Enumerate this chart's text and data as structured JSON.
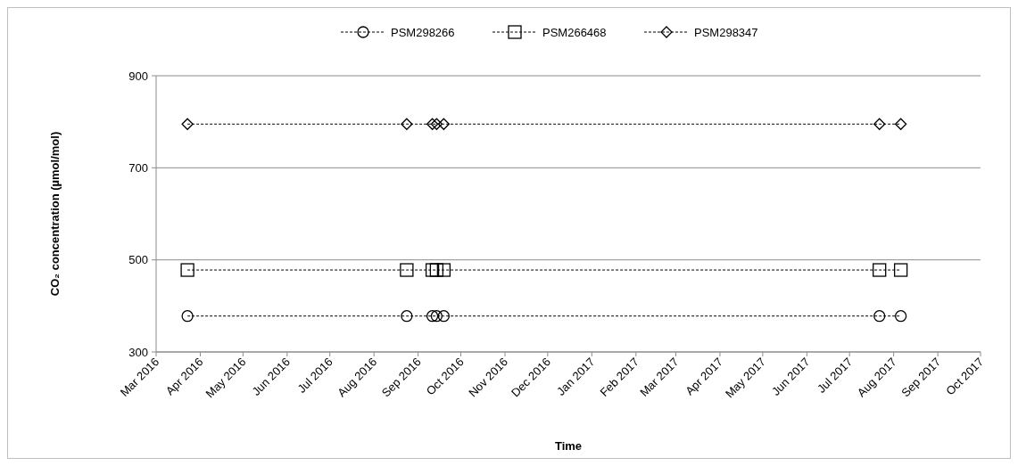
{
  "chart_data": {
    "type": "line",
    "xlabel": "Time",
    "ylabel": "CO₂ concentration (µmol/mol)",
    "x": [
      "2016-03-23",
      "2016-08-24",
      "2016-09-11",
      "2016-09-14",
      "2016-09-19",
      "2017-07-22",
      "2017-08-06"
    ],
    "series": [
      {
        "name": "PSM298266",
        "color": "#000000",
        "marker": "circle",
        "values": [
          378,
          378,
          378,
          378,
          378,
          378,
          378
        ]
      },
      {
        "name": "PSM266468",
        "color": "#000000",
        "marker": "square",
        "values": [
          478,
          478,
          478,
          478,
          478,
          478,
          478
        ]
      },
      {
        "name": "PSM298347",
        "color": "#000000",
        "marker": "diamond",
        "values": [
          795,
          795,
          795,
          795,
          795,
          795,
          795
        ]
      }
    ],
    "xlim": [
      "2016-03-01",
      "2017-10-01"
    ],
    "xticks": [
      {
        "value": "2016-03-01",
        "label": "Mar 2016"
      },
      {
        "value": "2016-04-01",
        "label": "Apr 2016"
      },
      {
        "value": "2016-05-01",
        "label": "May 2016"
      },
      {
        "value": "2016-06-01",
        "label": "Jun 2016"
      },
      {
        "value": "2016-07-01",
        "label": "Jul 2016"
      },
      {
        "value": "2016-08-01",
        "label": "Aug 2016"
      },
      {
        "value": "2016-09-01",
        "label": "Sep 2016"
      },
      {
        "value": "2016-10-01",
        "label": "Oct 2016"
      },
      {
        "value": "2016-11-01",
        "label": "Nov 2016"
      },
      {
        "value": "2016-12-01",
        "label": "Dec 2016"
      },
      {
        "value": "2017-01-01",
        "label": "Jan 2017"
      },
      {
        "value": "2017-02-01",
        "label": "Feb 2017"
      },
      {
        "value": "2017-03-01",
        "label": "Mar 2017"
      },
      {
        "value": "2017-04-01",
        "label": "Apr 2017"
      },
      {
        "value": "2017-05-01",
        "label": "May 2017"
      },
      {
        "value": "2017-06-01",
        "label": "Jun 2017"
      },
      {
        "value": "2017-07-01",
        "label": "Jul 2017"
      },
      {
        "value": "2017-08-01",
        "label": "Aug 2017"
      },
      {
        "value": "2017-09-01",
        "label": "Sep 2017"
      },
      {
        "value": "2017-10-01",
        "label": "Oct 2017"
      }
    ],
    "ylim": [
      300,
      900
    ],
    "yticks": [
      300,
      500,
      700,
      900
    ],
    "grid": "y",
    "legend": "top",
    "line_style": "dashed"
  }
}
